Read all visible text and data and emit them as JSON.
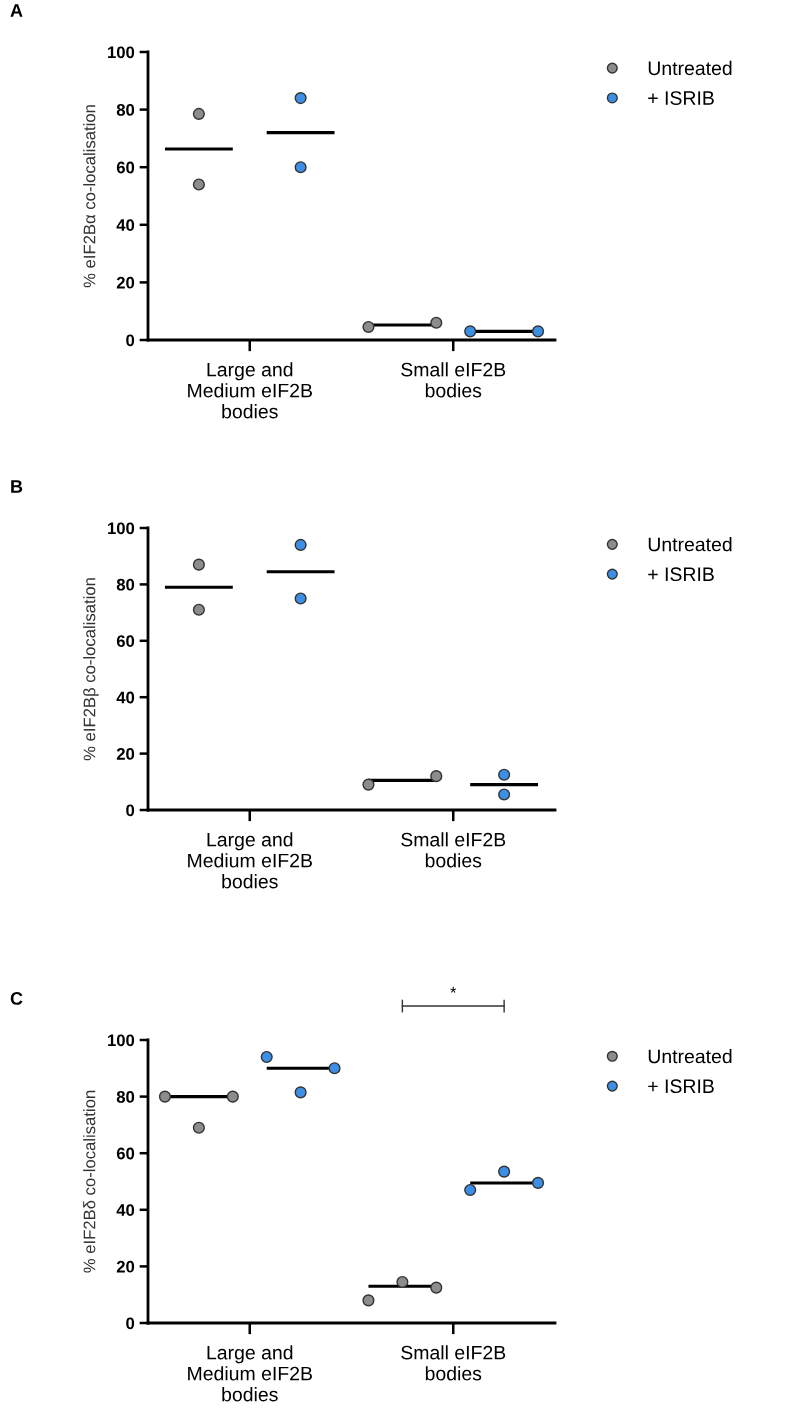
{
  "chart_data": [
    {
      "type": "scatter",
      "title": "A",
      "ylabel": "% eIF2Bα co-localisation",
      "categories": [
        null,
        null,
        null,
        null,
        null,
        null,
        null,
        null,
        null,
        null,
        null,
        null
      ],
      "ylim": [
        0,
        100
      ],
      "yticks": [
        0,
        20,
        40,
        60,
        80,
        100
      ],
      "grid": false,
      "legend": "top right",
      "marker": "circle",
      "annotations": [
        "Large and\nMedium eIF2B\nbodies",
        "Small eIF2B\nbodies"
      ],
      "series": [
        {
          "name": "Untreated",
          "color": "#8c8c8c",
          "values": [
            null,
            78.5,
            null,
            null,
            null,
            null,
            4.5,
            null,
            6,
            null,
            null,
            null
          ]
        },
        {
          "color": "#8c8c8c",
          "values": [
            null,
            54,
            null,
            null,
            null,
            null,
            null,
            null,
            null,
            null,
            null,
            null
          ]
        },
        {
          "name": "+ ISRIB",
          "color": "#3d8fe6",
          "values": [
            null,
            null,
            null,
            null,
            84,
            null,
            null,
            null,
            null,
            3,
            null,
            3
          ]
        },
        {
          "color": "#3d8fe6",
          "values": [
            null,
            null,
            null,
            null,
            60,
            null,
            null,
            null,
            null,
            null,
            null,
            null
          ]
        },
        {
          "type": "line",
          "marker": "none",
          "color": "#000000",
          "values": [
            66.3,
            66.3,
            66.3,
            null,
            null,
            null,
            null,
            null,
            null,
            null,
            null,
            null
          ]
        },
        {
          "type": "line",
          "marker": "none",
          "color": "#000000",
          "values": [
            null,
            null,
            null,
            72,
            72,
            72,
            null,
            null,
            null,
            null,
            null,
            null
          ]
        },
        {
          "type": "line",
          "marker": "none",
          "color": "#000000",
          "values": [
            null,
            null,
            null,
            null,
            null,
            null,
            5.2,
            5.2,
            5.2,
            null,
            null,
            null
          ]
        },
        {
          "type": "line",
          "marker": "none",
          "color": "#000000",
          "values": [
            null,
            null,
            null,
            null,
            null,
            null,
            null,
            null,
            null,
            3,
            3,
            3
          ]
        }
      ]
    },
    {
      "type": "scatter",
      "title": "B",
      "ylabel": "% eIF2Bβ co-localisation",
      "categories": [
        null,
        null,
        null,
        null,
        null,
        null,
        null,
        null,
        null,
        null,
        null,
        null
      ],
      "ylim": [
        0,
        100
      ],
      "yticks": [
        0,
        20,
        40,
        60,
        80,
        100
      ],
      "grid": false,
      "legend": "top right",
      "marker": "circle",
      "annotations": [
        "Large and\nMedium eIF2B\nbodies",
        "Small eIF2B\nbodies"
      ],
      "series": [
        {
          "name": "Untreated",
          "color": "#8c8c8c",
          "values": [
            null,
            87,
            null,
            null,
            null,
            null,
            9,
            null,
            12,
            null,
            null,
            null
          ]
        },
        {
          "color": "#8c8c8c",
          "values": [
            null,
            71,
            null,
            null,
            null,
            null,
            null,
            null,
            null,
            null,
            null,
            null
          ]
        },
        {
          "name": "+ ISRIB",
          "color": "#3d8fe6",
          "values": [
            null,
            null,
            null,
            null,
            94,
            null,
            null,
            null,
            null,
            null,
            12.5,
            null
          ]
        },
        {
          "color": "#3d8fe6",
          "values": [
            null,
            null,
            null,
            null,
            75,
            null,
            null,
            null,
            null,
            null,
            5.5,
            null
          ]
        },
        {
          "type": "line",
          "marker": "none",
          "color": "#000000",
          "values": [
            79,
            79,
            79,
            null,
            null,
            null,
            null,
            null,
            null,
            null,
            null,
            null
          ]
        },
        {
          "type": "line",
          "marker": "none",
          "color": "#000000",
          "values": [
            null,
            null,
            null,
            84.5,
            84.5,
            84.5,
            null,
            null,
            null,
            null,
            null,
            null
          ]
        },
        {
          "type": "line",
          "marker": "none",
          "color": "#000000",
          "values": [
            null,
            null,
            null,
            null,
            null,
            null,
            10.5,
            10.5,
            10.5,
            null,
            null,
            null
          ]
        },
        {
          "type": "line",
          "marker": "none",
          "color": "#000000",
          "values": [
            null,
            null,
            null,
            null,
            null,
            null,
            null,
            null,
            null,
            9,
            9,
            9
          ]
        }
      ]
    },
    {
      "type": "scatter",
      "title": "C",
      "ylabel": "% eIF2Bδ co-localisation",
      "categories": [
        null,
        null,
        null,
        null,
        null,
        null,
        null,
        null,
        null,
        null,
        null,
        null
      ],
      "ylim": [
        0,
        100
      ],
      "yticks": [
        0,
        20,
        40,
        60,
        80,
        100
      ],
      "grid": false,
      "legend": "top right",
      "marker": "circle",
      "annotations": [
        "Large and\nMedium eIF2B\nbodies",
        "Small eIF2B\nbodies",
        "*"
      ],
      "series": [
        {
          "name": "Untreated",
          "color": "#8c8c8c",
          "values": [
            80,
            null,
            80,
            null,
            null,
            null,
            8,
            null,
            12.5,
            null,
            null,
            null
          ]
        },
        {
          "color": "#8c8c8c",
          "values": [
            null,
            69,
            null,
            null,
            null,
            null,
            null,
            14.5,
            null,
            null,
            null,
            null
          ]
        },
        {
          "name": "+ ISRIB",
          "color": "#3d8fe6",
          "values": [
            null,
            null,
            null,
            94,
            null,
            90,
            null,
            null,
            null,
            47,
            null,
            49.5
          ]
        },
        {
          "color": "#3d8fe6",
          "values": [
            null,
            null,
            null,
            null,
            81.5,
            null,
            null,
            null,
            null,
            null,
            53.5,
            null
          ]
        },
        {
          "type": "line",
          "marker": "none",
          "color": "#000000",
          "values": [
            80,
            80,
            80,
            null,
            null,
            null,
            null,
            null,
            null,
            null,
            null,
            null
          ]
        },
        {
          "type": "line",
          "marker": "none",
          "color": "#000000",
          "values": [
            null,
            null,
            null,
            90,
            90,
            90,
            null,
            null,
            null,
            null,
            null,
            null
          ]
        },
        {
          "type": "line",
          "marker": "none",
          "color": "#000000",
          "values": [
            null,
            null,
            null,
            null,
            null,
            null,
            13,
            13,
            13,
            null,
            null,
            null
          ]
        },
        {
          "type": "line",
          "marker": "none",
          "color": "#000000",
          "values": [
            null,
            null,
            null,
            null,
            null,
            null,
            null,
            null,
            null,
            49.5,
            49.5,
            49.5
          ]
        }
      ]
    }
  ]
}
